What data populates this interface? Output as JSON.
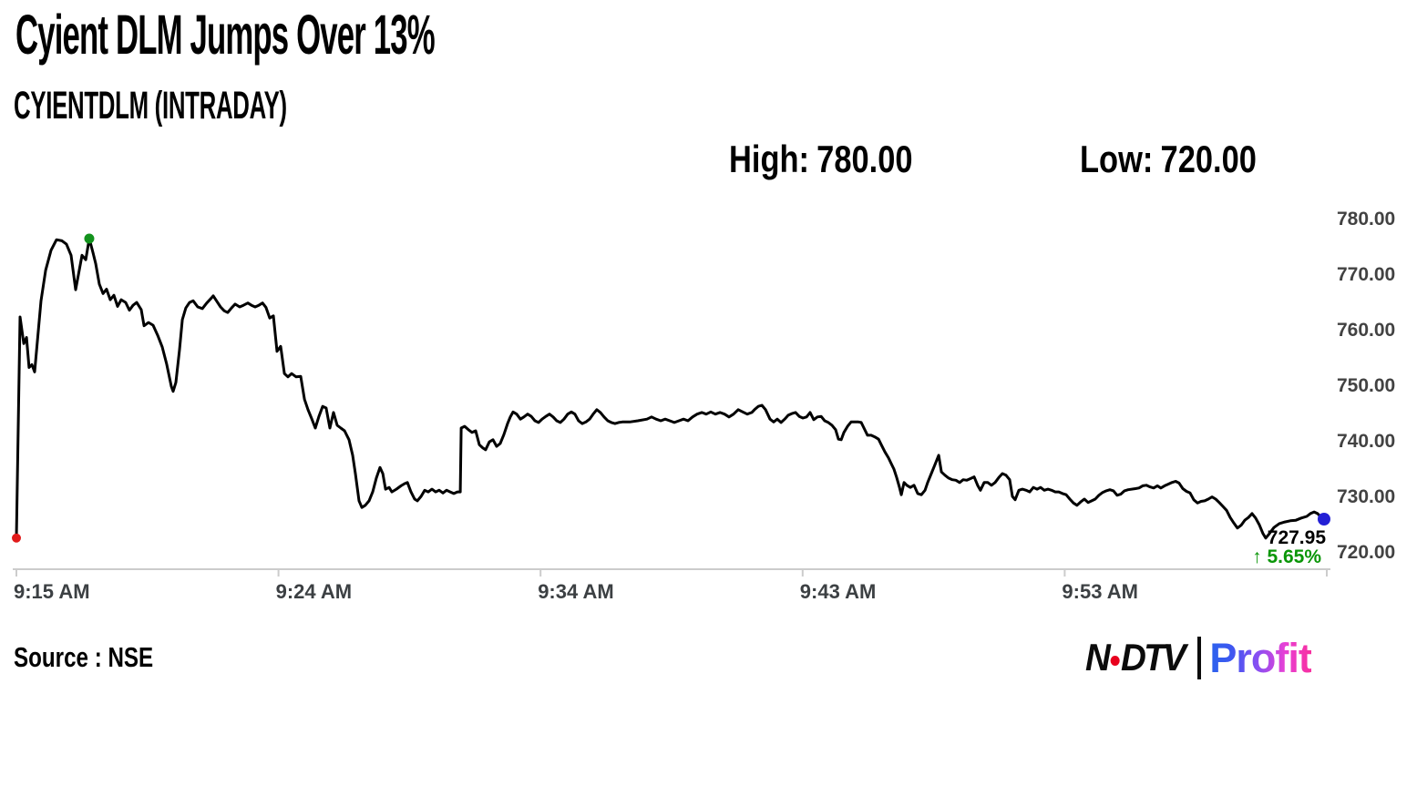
{
  "header": {
    "title": "Cyient DLM Jumps Over 13%",
    "subtitle": "CYIENTDLM (INTRADAY)",
    "high_label": "High:",
    "high_value": "780.00",
    "low_label": "Low:",
    "low_value": "720.00"
  },
  "footer": {
    "source": "Source : NSE",
    "logo": {
      "n": "N",
      "dtv": "DTV",
      "profit": "Profit",
      "ndtv_color": "#0b0b0b",
      "dot_color": "#e8001d"
    }
  },
  "chart_data": {
    "type": "line",
    "title": "CYIENTDLM (INTRADAY)",
    "line_color": "#000000",
    "axis_color": "#cccccc",
    "grid": false,
    "y_axis": {
      "min": 720,
      "max": 780,
      "ticks": [
        {
          "label": "780.00",
          "value": 780
        },
        {
          "label": "770.00",
          "value": 770
        },
        {
          "label": "760.00",
          "value": 760
        },
        {
          "label": "750.00",
          "value": 750
        },
        {
          "label": "740.00",
          "value": 740
        },
        {
          "label": "730.00",
          "value": 730
        },
        {
          "label": "720.00",
          "value": 720
        }
      ]
    },
    "x_axis": {
      "ticks": [
        {
          "label": "9:15 AM",
          "f": 0.0
        },
        {
          "label": "9:24 AM",
          "f": 0.2
        },
        {
          "label": "9:34 AM",
          "f": 0.4
        },
        {
          "label": "9:43 AM",
          "f": 0.6
        },
        {
          "label": "9:53 AM",
          "f": 0.8
        }
      ],
      "end_tick_f": 1.0
    },
    "markers": {
      "open": {
        "f": 0.0,
        "price": 722.5,
        "color": "#e11b1b",
        "r": 5
      },
      "high": {
        "f": 0.0556,
        "price": 776.4,
        "color": "#12921c",
        "r": 5.5
      },
      "last": {
        "f": 0.9979,
        "price": 725.9,
        "color": "#2320d5",
        "r": 7
      }
    },
    "callout": {
      "price": "727.95",
      "arrow": "↑",
      "change": "5.65%"
    },
    "points": [
      [
        0,
        722.5
      ],
      [
        0.0028,
        762.3
      ],
      [
        0.0056,
        757.5
      ],
      [
        0.0077,
        758.6
      ],
      [
        0.0097,
        753.2
      ],
      [
        0.0118,
        753.7
      ],
      [
        0.0139,
        752.4
      ],
      [
        0.0188,
        765.2
      ],
      [
        0.0223,
        770.7
      ],
      [
        0.0264,
        774.3
      ],
      [
        0.0306,
        776.2
      ],
      [
        0.0348,
        776.0
      ],
      [
        0.0382,
        775.4
      ],
      [
        0.0417,
        773.4
      ],
      [
        0.0452,
        767.2
      ],
      [
        0.0501,
        773.4
      ],
      [
        0.0529,
        772.6
      ],
      [
        0.0556,
        776.4
      ],
      [
        0.0584,
        773.9
      ],
      [
        0.0605,
        771.9
      ],
      [
        0.0633,
        768.2
      ],
      [
        0.0661,
        766.5
      ],
      [
        0.0688,
        767.3
      ],
      [
        0.0716,
        765.4
      ],
      [
        0.0744,
        766.2
      ],
      [
        0.0772,
        764.2
      ],
      [
        0.08,
        765.4
      ],
      [
        0.0834,
        764.9
      ],
      [
        0.0862,
        763.5
      ],
      [
        0.089,
        764.4
      ],
      [
        0.0918,
        764.9
      ],
      [
        0.0953,
        763.6
      ],
      [
        0.0974,
        760.7
      ],
      [
        0.1008,
        761.3
      ],
      [
        0.1043,
        760.8
      ],
      [
        0.1078,
        759.0
      ],
      [
        0.1113,
        756.9
      ],
      [
        0.1147,
        753.8
      ],
      [
        0.1182,
        749.8
      ],
      [
        0.1196,
        748.9
      ],
      [
        0.1217,
        750.5
      ],
      [
        0.1245,
        756.4
      ],
      [
        0.1266,
        761.8
      ],
      [
        0.1293,
        763.9
      ],
      [
        0.1321,
        764.9
      ],
      [
        0.1349,
        765.2
      ],
      [
        0.1384,
        764.1
      ],
      [
        0.1419,
        763.8
      ],
      [
        0.1453,
        764.8
      ],
      [
        0.1488,
        765.7
      ],
      [
        0.1502,
        766.1
      ],
      [
        0.153,
        765.1
      ],
      [
        0.1558,
        764.1
      ],
      [
        0.1586,
        763.4
      ],
      [
        0.1613,
        763.1
      ],
      [
        0.1641,
        763.9
      ],
      [
        0.1669,
        764.6
      ],
      [
        0.1704,
        764.1
      ],
      [
        0.1732,
        764.4
      ],
      [
        0.1766,
        764.8
      ],
      [
        0.1794,
        764.4
      ],
      [
        0.1822,
        764.1
      ],
      [
        0.185,
        764.4
      ],
      [
        0.1878,
        764.8
      ],
      [
        0.1905,
        764.0
      ],
      [
        0.1933,
        762.1
      ],
      [
        0.1961,
        762.5
      ],
      [
        0.1989,
        756.1
      ],
      [
        0.2017,
        757.0
      ],
      [
        0.2045,
        752.1
      ],
      [
        0.2072,
        751.5
      ],
      [
        0.21,
        752.1
      ],
      [
        0.2135,
        751.5
      ],
      [
        0.217,
        751.6
      ],
      [
        0.2198,
        747.5
      ],
      [
        0.2225,
        745.6
      ],
      [
        0.2253,
        744.0
      ],
      [
        0.2281,
        742.3
      ],
      [
        0.2309,
        744.4
      ],
      [
        0.2337,
        746.2
      ],
      [
        0.2364,
        745.9
      ],
      [
        0.2392,
        742.3
      ],
      [
        0.242,
        745.1
      ],
      [
        0.2448,
        742.8
      ],
      [
        0.2476,
        742.3
      ],
      [
        0.2504,
        741.8
      ],
      [
        0.2538,
        740.2
      ],
      [
        0.2566,
        737.4
      ],
      [
        0.2587,
        734.1
      ],
      [
        0.2615,
        729.2
      ],
      [
        0.2636,
        728.0
      ],
      [
        0.2663,
        728.4
      ],
      [
        0.2691,
        729.2
      ],
      [
        0.2719,
        730.8
      ],
      [
        0.2747,
        733.3
      ],
      [
        0.2775,
        735.2
      ],
      [
        0.2796,
        734.1
      ],
      [
        0.2817,
        731.3
      ],
      [
        0.2844,
        731.6
      ],
      [
        0.2865,
        730.8
      ],
      [
        0.29,
        731.3
      ],
      [
        0.2935,
        731.9
      ],
      [
        0.2963,
        732.3
      ],
      [
        0.2984,
        732.5
      ],
      [
        0.3011,
        730.8
      ],
      [
        0.3039,
        729.5
      ],
      [
        0.306,
        729.2
      ],
      [
        0.3088,
        730.0
      ],
      [
        0.3116,
        731.1
      ],
      [
        0.3143,
        730.8
      ],
      [
        0.3171,
        731.3
      ],
      [
        0.3199,
        730.8
      ],
      [
        0.3227,
        731.1
      ],
      [
        0.3255,
        730.6
      ],
      [
        0.3282,
        731.1
      ],
      [
        0.331,
        730.8
      ],
      [
        0.3338,
        730.5
      ],
      [
        0.3366,
        730.8
      ],
      [
        0.3387,
        730.8
      ],
      [
        0.3394,
        742.3
      ],
      [
        0.3421,
        742.6
      ],
      [
        0.3449,
        742.0
      ],
      [
        0.3477,
        741.5
      ],
      [
        0.3505,
        741.8
      ],
      [
        0.3533,
        739.3
      ],
      [
        0.356,
        738.7
      ],
      [
        0.3581,
        738.4
      ],
      [
        0.3609,
        739.8
      ],
      [
        0.3637,
        740.2
      ],
      [
        0.3665,
        739.0
      ],
      [
        0.3692,
        739.5
      ],
      [
        0.372,
        741.1
      ],
      [
        0.3748,
        743.1
      ],
      [
        0.3769,
        744.3
      ],
      [
        0.379,
        745.2
      ],
      [
        0.3818,
        744.8
      ],
      [
        0.3846,
        743.9
      ],
      [
        0.3873,
        744.3
      ],
      [
        0.3901,
        744.8
      ],
      [
        0.3929,
        744.4
      ],
      [
        0.3957,
        743.6
      ],
      [
        0.3985,
        743.3
      ],
      [
        0.4012,
        743.9
      ],
      [
        0.404,
        744.4
      ],
      [
        0.4068,
        744.8
      ],
      [
        0.4096,
        744.3
      ],
      [
        0.4123,
        743.6
      ],
      [
        0.4151,
        743.3
      ],
      [
        0.4179,
        743.9
      ],
      [
        0.4207,
        744.8
      ],
      [
        0.4235,
        745.2
      ],
      [
        0.4262,
        744.8
      ],
      [
        0.429,
        743.6
      ],
      [
        0.4318,
        743.1
      ],
      [
        0.4346,
        743.4
      ],
      [
        0.4374,
        743.9
      ],
      [
        0.4401,
        744.8
      ],
      [
        0.4429,
        745.6
      ],
      [
        0.4457,
        745.1
      ],
      [
        0.4485,
        744.3
      ],
      [
        0.4513,
        743.6
      ],
      [
        0.454,
        743.3
      ],
      [
        0.4568,
        743.1
      ],
      [
        0.4596,
        743.3
      ],
      [
        0.4624,
        743.4
      ],
      [
        0.468,
        743.4
      ],
      [
        0.4743,
        743.6
      ],
      [
        0.4812,
        743.9
      ],
      [
        0.4847,
        744.3
      ],
      [
        0.4882,
        743.9
      ],
      [
        0.4917,
        743.6
      ],
      [
        0.4951,
        743.9
      ],
      [
        0.4986,
        743.6
      ],
      [
        0.5021,
        743.3
      ],
      [
        0.5056,
        743.6
      ],
      [
        0.5091,
        743.9
      ],
      [
        0.5125,
        743.6
      ],
      [
        0.516,
        744.3
      ],
      [
        0.5195,
        744.8
      ],
      [
        0.523,
        745.1
      ],
      [
        0.5264,
        744.8
      ],
      [
        0.5299,
        745.2
      ],
      [
        0.5334,
        744.8
      ],
      [
        0.5369,
        745.1
      ],
      [
        0.5404,
        744.8
      ],
      [
        0.5438,
        744.3
      ],
      [
        0.5473,
        744.8
      ],
      [
        0.5508,
        745.6
      ],
      [
        0.5543,
        745.2
      ],
      [
        0.5577,
        744.8
      ],
      [
        0.5612,
        745.1
      ],
      [
        0.5633,
        745.6
      ],
      [
        0.5661,
        746.2
      ],
      [
        0.5689,
        746.4
      ],
      [
        0.5717,
        745.6
      ],
      [
        0.5751,
        743.9
      ],
      [
        0.5779,
        743.4
      ],
      [
        0.5807,
        743.9
      ],
      [
        0.5835,
        743.3
      ],
      [
        0.5863,
        743.9
      ],
      [
        0.589,
        744.6
      ],
      [
        0.5918,
        744.9
      ],
      [
        0.5946,
        745.1
      ],
      [
        0.5974,
        744.4
      ],
      [
        0.6002,
        744.1
      ],
      [
        0.603,
        744.3
      ],
      [
        0.6057,
        745.1
      ],
      [
        0.6085,
        743.8
      ],
      [
        0.6113,
        744.3
      ],
      [
        0.6141,
        744.4
      ],
      [
        0.6168,
        743.6
      ],
      [
        0.6196,
        743.3
      ],
      [
        0.6224,
        742.8
      ],
      [
        0.6252,
        742.0
      ],
      [
        0.6273,
        740.3
      ],
      [
        0.6294,
        740.2
      ],
      [
        0.6315,
        741.5
      ],
      [
        0.6343,
        742.6
      ],
      [
        0.637,
        743.4
      ],
      [
        0.6426,
        743.4
      ],
      [
        0.6447,
        743.3
      ],
      [
        0.6468,
        742.3
      ],
      [
        0.6495,
        741.0
      ],
      [
        0.6523,
        741.0
      ],
      [
        0.6551,
        740.7
      ],
      [
        0.6579,
        740.3
      ],
      [
        0.66,
        739.3
      ],
      [
        0.6628,
        738.0
      ],
      [
        0.6656,
        736.9
      ],
      [
        0.6676,
        735.9
      ],
      [
        0.6697,
        734.9
      ],
      [
        0.6718,
        733.4
      ],
      [
        0.6739,
        731.6
      ],
      [
        0.6753,
        730.3
      ],
      [
        0.6774,
        732.5
      ],
      [
        0.6795,
        732.0
      ],
      [
        0.6822,
        731.6
      ],
      [
        0.685,
        732.0
      ],
      [
        0.6878,
        730.5
      ],
      [
        0.6906,
        730.3
      ],
      [
        0.6934,
        731.1
      ],
      [
        0.6954,
        732.5
      ],
      [
        0.6982,
        734.1
      ],
      [
        0.701,
        735.7
      ],
      [
        0.7038,
        737.4
      ],
      [
        0.7059,
        734.4
      ],
      [
        0.7086,
        733.8
      ],
      [
        0.7114,
        733.3
      ],
      [
        0.7142,
        733.0
      ],
      [
        0.717,
        732.9
      ],
      [
        0.7198,
        732.5
      ],
      [
        0.7225,
        733.0
      ],
      [
        0.7253,
        732.9
      ],
      [
        0.7281,
        733.2
      ],
      [
        0.7309,
        733.5
      ],
      [
        0.7337,
        731.9
      ],
      [
        0.7357,
        731.1
      ],
      [
        0.7385,
        732.5
      ],
      [
        0.7413,
        732.5
      ],
      [
        0.7441,
        732.0
      ],
      [
        0.7469,
        732.5
      ],
      [
        0.7497,
        733.4
      ],
      [
        0.7524,
        734.1
      ],
      [
        0.7552,
        733.8
      ],
      [
        0.758,
        733.0
      ],
      [
        0.7601,
        730.0
      ],
      [
        0.7622,
        729.4
      ],
      [
        0.765,
        731.1
      ],
      [
        0.7677,
        731.3
      ],
      [
        0.7705,
        731.1
      ],
      [
        0.7733,
        730.8
      ],
      [
        0.7761,
        731.6
      ],
      [
        0.7789,
        731.3
      ],
      [
        0.7816,
        731.6
      ],
      [
        0.7844,
        731.1
      ],
      [
        0.7872,
        731.3
      ],
      [
        0.79,
        731.1
      ],
      [
        0.7928,
        730.8
      ],
      [
        0.7955,
        730.8
      ],
      [
        0.7983,
        730.5
      ],
      [
        0.8011,
        730.3
      ],
      [
        0.8039,
        729.5
      ],
      [
        0.8067,
        728.8
      ],
      [
        0.8094,
        728.4
      ],
      [
        0.8122,
        729.0
      ],
      [
        0.815,
        729.5
      ],
      [
        0.8178,
        728.9
      ],
      [
        0.8206,
        729.2
      ],
      [
        0.8233,
        729.5
      ],
      [
        0.8261,
        730.2
      ],
      [
        0.8289,
        730.7
      ],
      [
        0.8317,
        731.0
      ],
      [
        0.8345,
        731.2
      ],
      [
        0.8372,
        731.0
      ],
      [
        0.84,
        730.2
      ],
      [
        0.8428,
        730.4
      ],
      [
        0.8456,
        731.0
      ],
      [
        0.8484,
        731.2
      ],
      [
        0.854,
        731.4
      ],
      [
        0.8567,
        731.5
      ],
      [
        0.8595,
        731.9
      ],
      [
        0.8623,
        732.0
      ],
      [
        0.8651,
        731.7
      ],
      [
        0.8679,
        731.5
      ],
      [
        0.8707,
        731.9
      ],
      [
        0.8734,
        731.5
      ],
      [
        0.8762,
        731.9
      ],
      [
        0.879,
        732.2
      ],
      [
        0.8818,
        732.5
      ],
      [
        0.8846,
        732.7
      ],
      [
        0.8873,
        732.4
      ],
      [
        0.8901,
        731.4
      ],
      [
        0.8929,
        730.9
      ],
      [
        0.8957,
        730.6
      ],
      [
        0.8985,
        729.4
      ],
      [
        0.9013,
        728.8
      ],
      [
        0.904,
        729.1
      ],
      [
        0.9068,
        729.2
      ],
      [
        0.9096,
        729.5
      ],
      [
        0.9124,
        729.9
      ],
      [
        0.9152,
        729.5
      ],
      [
        0.9179,
        728.9
      ],
      [
        0.9207,
        728.2
      ],
      [
        0.9235,
        727.5
      ],
      [
        0.9263,
        726.2
      ],
      [
        0.9291,
        725.2
      ],
      [
        0.9318,
        724.3
      ],
      [
        0.9346,
        724.8
      ],
      [
        0.9374,
        725.7
      ],
      [
        0.9402,
        726.2
      ],
      [
        0.943,
        726.9
      ],
      [
        0.9457,
        726.1
      ],
      [
        0.9485,
        724.9
      ],
      [
        0.9513,
        723.3
      ],
      [
        0.9534,
        722.5
      ],
      [
        0.9562,
        723.3
      ],
      [
        0.9597,
        724.4
      ],
      [
        0.9638,
        725.1
      ],
      [
        0.968,
        725.4
      ],
      [
        0.9722,
        725.6
      ],
      [
        0.9764,
        725.7
      ],
      [
        0.9805,
        726.1
      ],
      [
        0.9847,
        726.4
      ],
      [
        0.9875,
        726.9
      ],
      [
        0.9903,
        727.2
      ],
      [
        0.993,
        726.9
      ],
      [
        0.9958,
        726.2
      ],
      [
        0.9979,
        725.9
      ]
    ]
  }
}
